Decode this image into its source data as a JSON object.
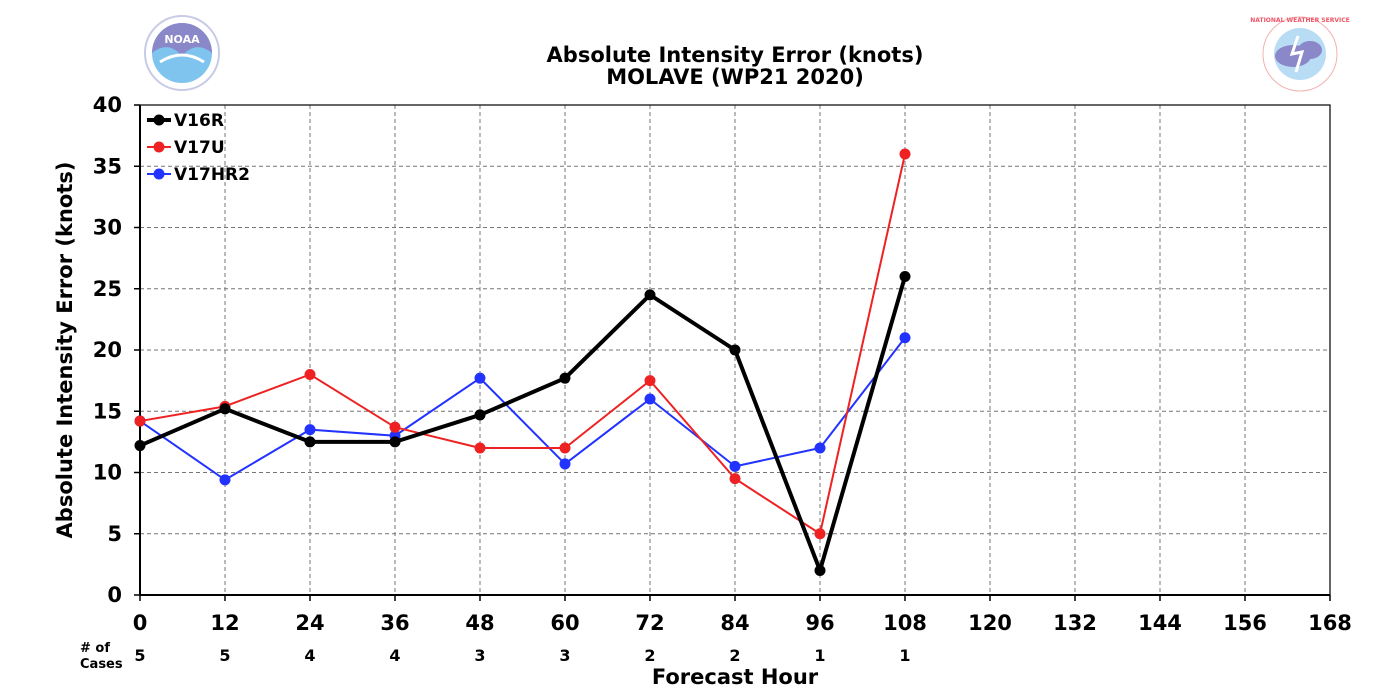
{
  "header": {
    "title_line1": "Absolute Intensity Error (knots)",
    "title_line2": "MOLAVE (WP21 2020)"
  },
  "logos": {
    "left": {
      "icon": "noaa-logo-icon",
      "text": "NOAA"
    },
    "right": {
      "icon": "nws-logo-icon",
      "text": "NATIONAL WEATHER SERVICE"
    }
  },
  "cases": {
    "label_line1": "# of",
    "label_line2": "Cases",
    "counts": [
      "5",
      "5",
      "4",
      "4",
      "3",
      "3",
      "2",
      "2",
      "1",
      "1"
    ]
  },
  "chart_data": {
    "type": "line",
    "xlabel": "Forecast Hour",
    "ylabel": "Absolute Intensity Error (knots)",
    "xlim": [
      0,
      168
    ],
    "ylim": [
      0,
      40
    ],
    "xticks": [
      0,
      12,
      24,
      36,
      48,
      60,
      72,
      84,
      96,
      108,
      120,
      132,
      144,
      156,
      168
    ],
    "yticks": [
      0,
      5,
      10,
      15,
      20,
      25,
      30,
      35,
      40
    ],
    "grid": true,
    "legend_position": "top-left",
    "x": [
      0,
      12,
      24,
      36,
      48,
      60,
      72,
      84,
      96,
      108
    ],
    "series": [
      {
        "name": "V16R",
        "color": "#000000",
        "values": [
          12.2,
          15.2,
          12.5,
          12.5,
          14.7,
          17.7,
          24.5,
          20.0,
          2.0,
          26.0
        ]
      },
      {
        "name": "V17U",
        "color": "#ee2222",
        "values": [
          14.2,
          15.4,
          18.0,
          13.7,
          12.0,
          12.0,
          17.5,
          9.5,
          5.0,
          36.0
        ]
      },
      {
        "name": "V17HR2",
        "color": "#2233ff",
        "values": [
          14.2,
          9.4,
          13.5,
          13.0,
          17.7,
          10.7,
          16.0,
          10.5,
          12.0,
          21.0
        ]
      }
    ]
  }
}
